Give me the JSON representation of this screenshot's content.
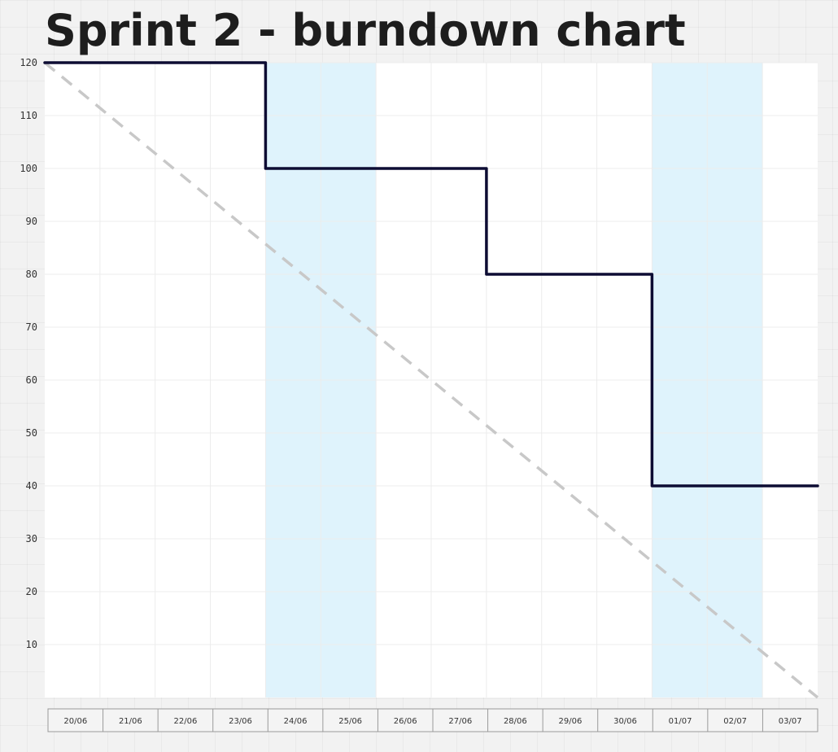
{
  "page": {
    "title": "Sprint 2 - burndown chart"
  },
  "colors": {
    "plot_background": "#ffffff",
    "weekend_band": "#dff3fc",
    "actual_line": "#0d0c33",
    "ideal_line": "#c8c8c8",
    "gridline": "#ececec",
    "axis_box_border": "#9a9a9a"
  },
  "chart_data": {
    "type": "line",
    "title": "Sprint 2 - burndown chart",
    "xlabel": "",
    "ylabel": "",
    "categories": [
      "20/06",
      "21/06",
      "22/06",
      "23/06",
      "24/06",
      "25/06",
      "26/06",
      "27/06",
      "28/06",
      "29/06",
      "30/06",
      "01/07",
      "02/07",
      "03/07"
    ],
    "y_ticks": [
      120,
      110,
      100,
      90,
      80,
      70,
      60,
      50,
      40,
      30,
      20,
      10
    ],
    "ylim": [
      0,
      120
    ],
    "grid": true,
    "weekend_categories": [
      "24/06",
      "25/06",
      "01/07",
      "02/07"
    ],
    "series": [
      {
        "style": "solid-step",
        "points": [
          {
            "x": "20/06",
            "y": 120
          },
          {
            "x": "24/06",
            "y": 120
          },
          {
            "x": "24/06",
            "y": 100
          },
          {
            "x": "28/06",
            "y": 100
          },
          {
            "x": "28/06",
            "y": 80
          },
          {
            "x": "01/07",
            "y": 80
          },
          {
            "x": "01/07",
            "y": 40
          },
          {
            "x": "end",
            "y": 40
          }
        ]
      },
      {
        "style": "dashed",
        "points": [
          {
            "x": "20/06",
            "y": 120
          },
          {
            "x": "end",
            "y": 0
          }
        ]
      }
    ]
  }
}
